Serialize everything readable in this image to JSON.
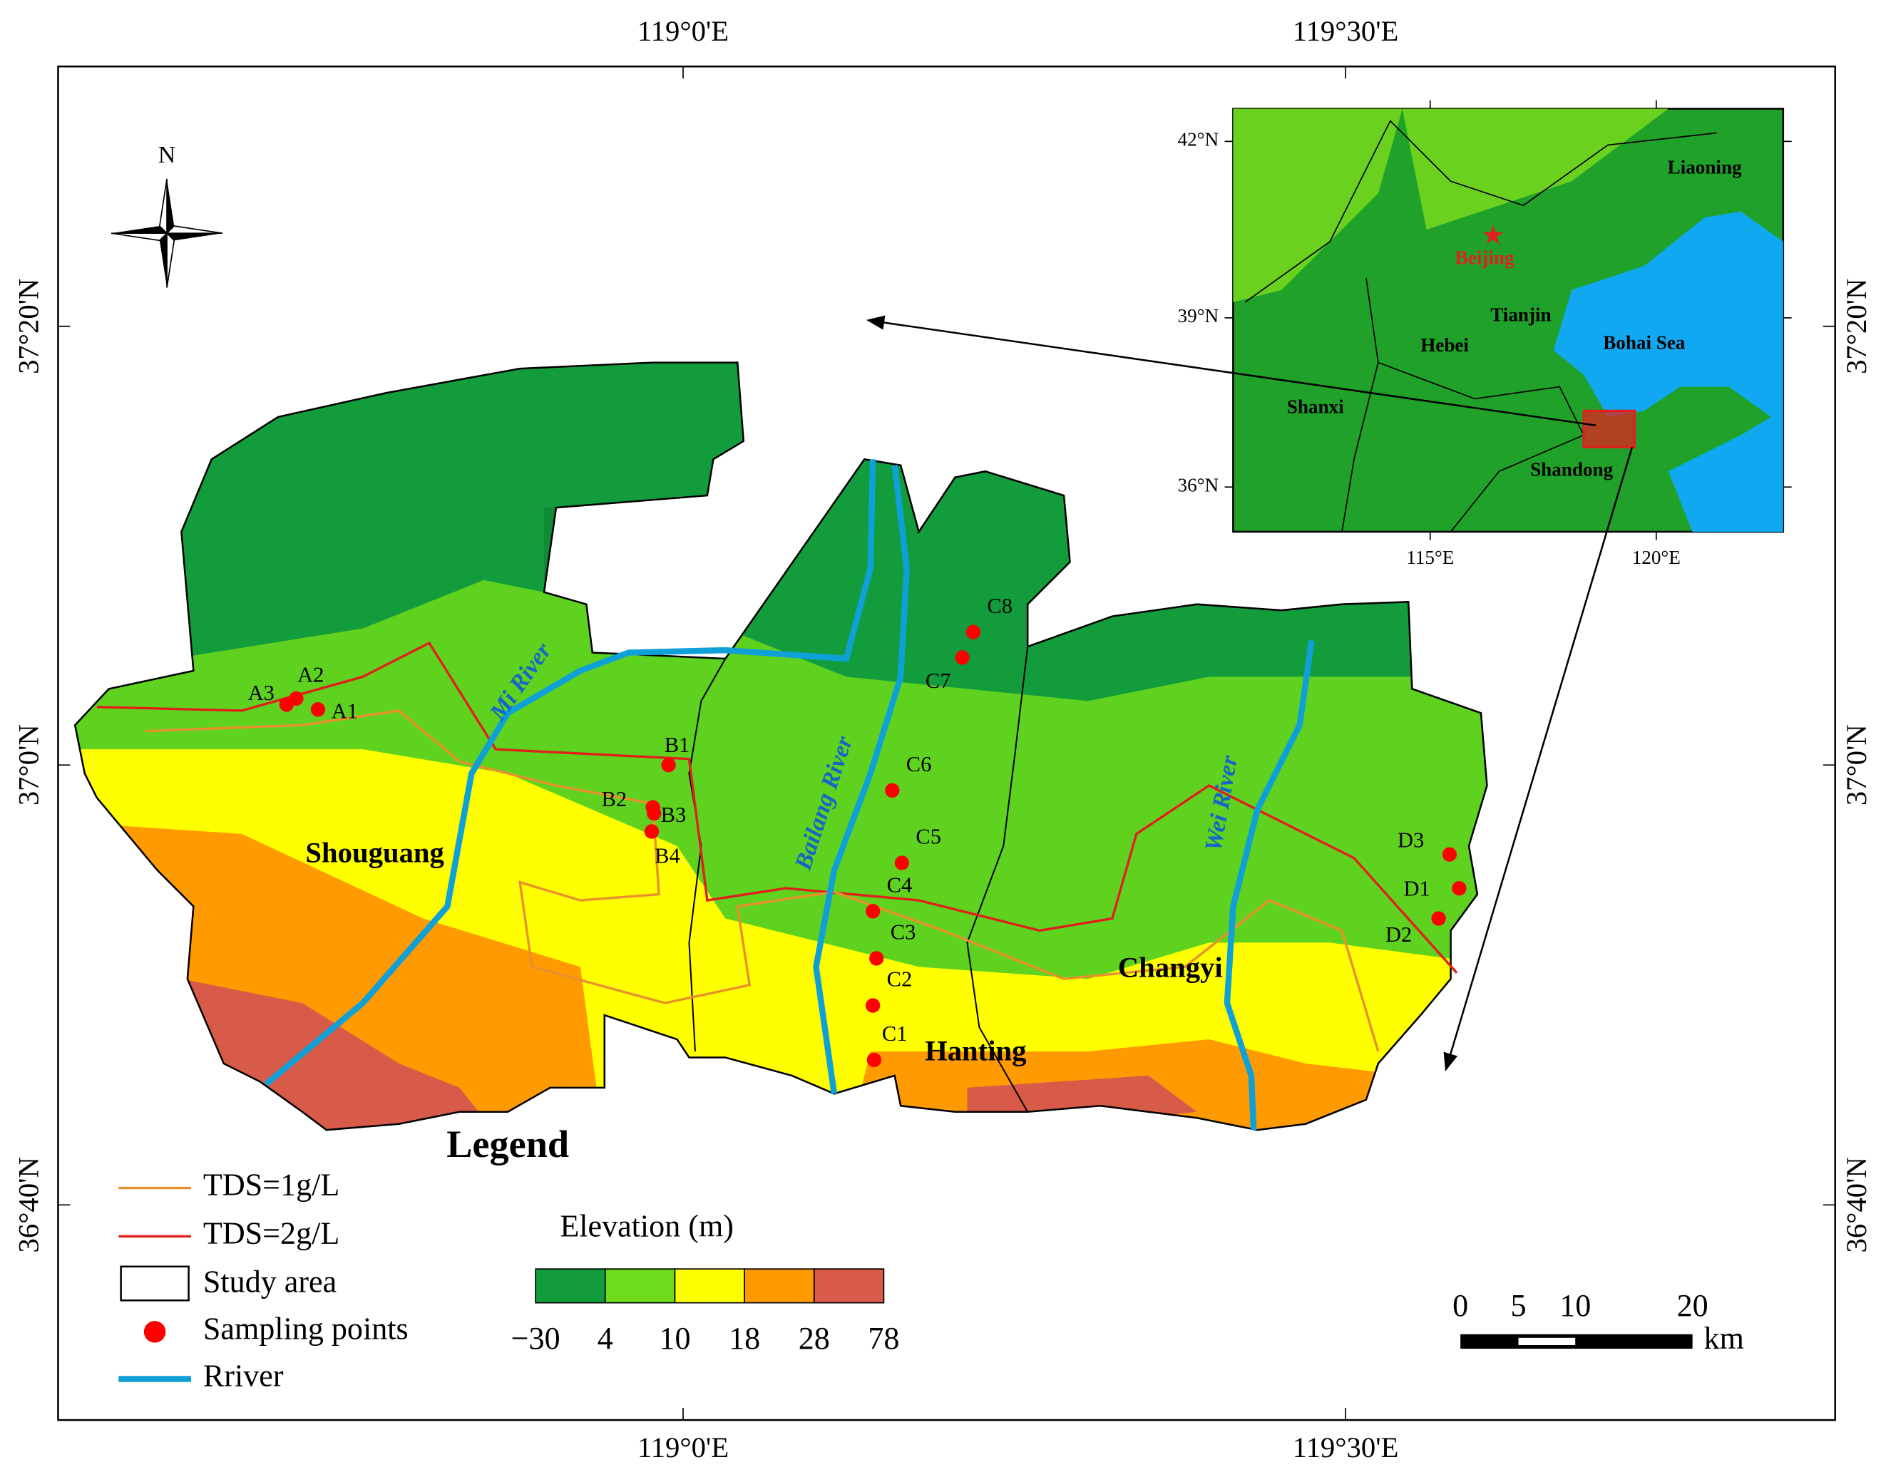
{
  "map": {
    "graticule": {
      "top": [
        "119°0'E",
        "119°30'E"
      ],
      "bottom": [
        "119°0'E",
        "119°30'E"
      ],
      "left": [
        "37°20'N",
        "37°0'N",
        "36°40'N"
      ],
      "right": [
        "37°20'N",
        "37°0'N",
        "36°40'N"
      ]
    },
    "north": "N",
    "regions": [
      "Shouguang",
      "Hanting",
      "Changyi"
    ],
    "rivers": [
      "Mi River",
      "Bailang River",
      "Wei River"
    ],
    "sampling_points": [
      "A1",
      "A2",
      "A3",
      "B1",
      "B2",
      "B3",
      "B4",
      "C1",
      "C2",
      "C3",
      "C4",
      "C5",
      "C6",
      "C7",
      "C8",
      "D1",
      "D2",
      "D3"
    ]
  },
  "inset": {
    "lat_labels": [
      "42°N",
      "39°N",
      "36°N"
    ],
    "lon_labels": [
      "115°E",
      "120°E"
    ],
    "places": [
      "Liaoning",
      "Beijing",
      "Tianjin",
      "Hebei",
      "Bohai Sea",
      "Shanxi",
      "Shandong"
    ]
  },
  "legend": {
    "title": "Legend",
    "items": [
      "TDS=1g/L",
      "TDS=2g/L",
      "Study area",
      "Sampling points",
      "Rriver"
    ]
  },
  "elevation": {
    "title": "Elevation (m)",
    "labels": [
      "−30",
      "4",
      "10",
      "18",
      "28",
      "78"
    ]
  },
  "scale_bar": {
    "labels": [
      "0",
      "5",
      "10",
      "20"
    ],
    "unit": "km"
  }
}
